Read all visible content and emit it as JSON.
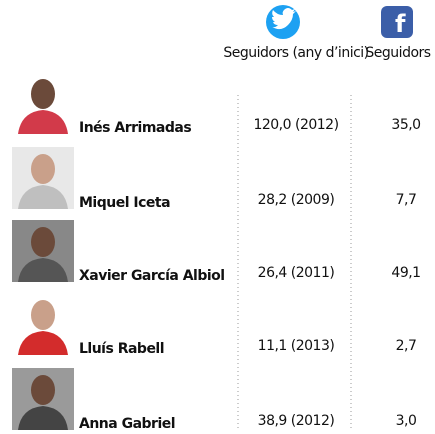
{
  "header": {
    "columns": [
      "Seguidors (any d’inici)",
      "Seguidors"
    ]
  },
  "table": {
    "rows": [
      [
        "Inés Arrimadas",
        "120,0 (2012)",
        "35,0"
      ],
      [
        "Miquel Iceta",
        "28,2 (2009)",
        "7,7"
      ],
      [
        "Xavier García Albiol",
        "26,4 (2011)",
        "49,1"
      ],
      [
        "Lluís Rabell",
        "11,1 (2013)",
        "2,7"
      ],
      [
        "Anna Gabriel",
        "38,9 (2012)",
        "3,0"
      ]
    ]
  }
}
